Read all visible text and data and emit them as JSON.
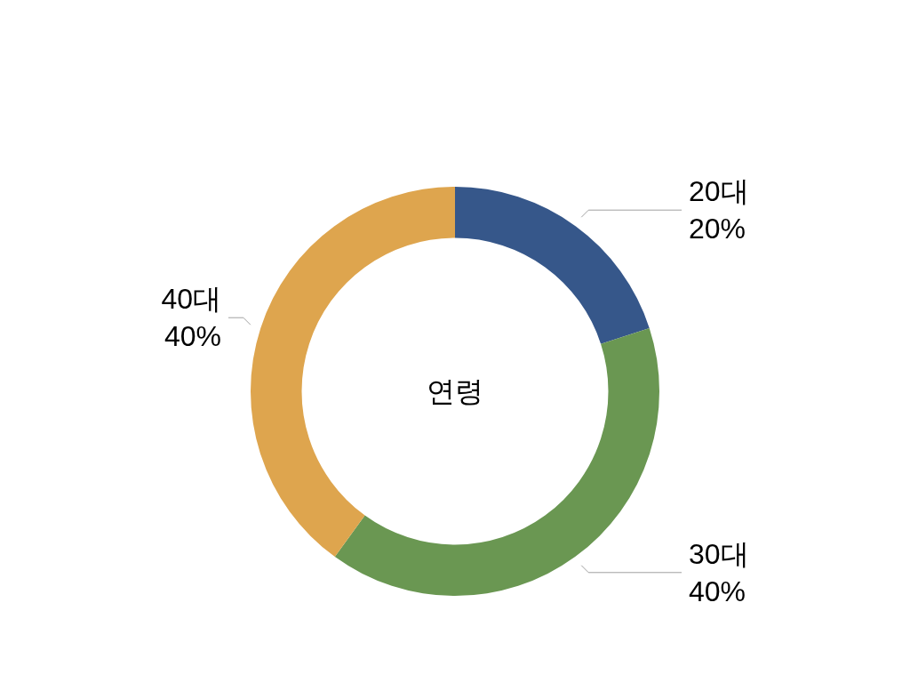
{
  "chart_data": {
    "type": "donut",
    "title": "연령",
    "categories": [
      "20대",
      "30대",
      "40대"
    ],
    "values": [
      20,
      40,
      40
    ],
    "colors": [
      "#36578a",
      "#6a9752",
      "#dea54e"
    ],
    "value_labels": [
      "20%",
      "40%",
      "40%"
    ]
  }
}
